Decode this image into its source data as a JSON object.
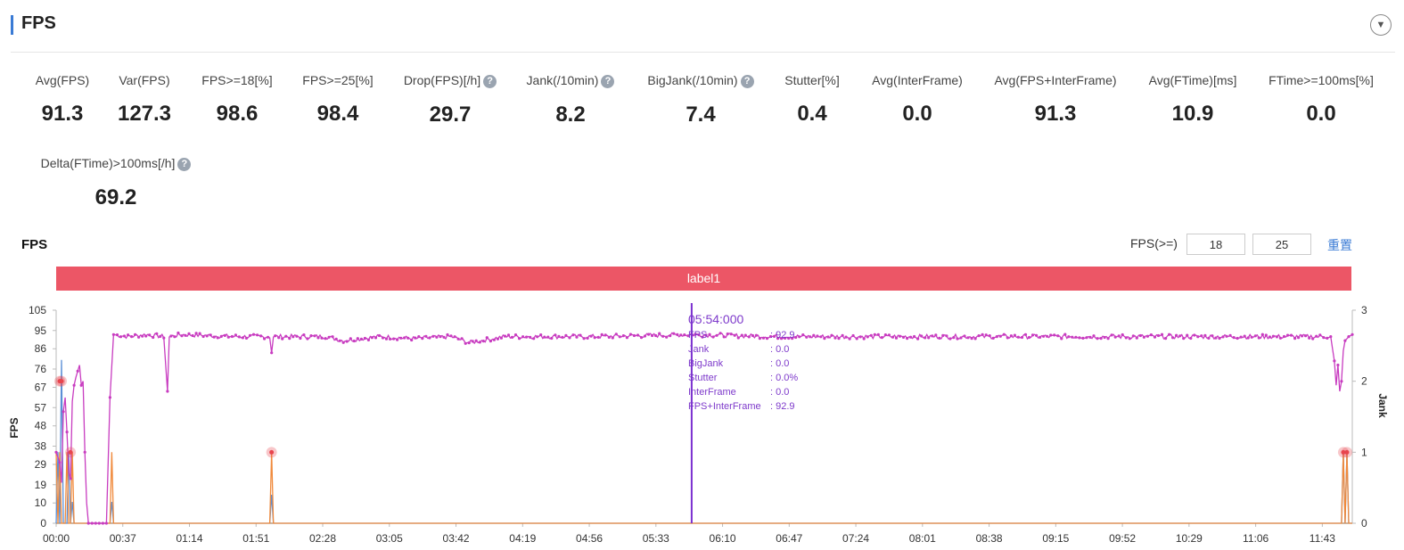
{
  "header": {
    "title": "FPS",
    "collapse_icon": "▼"
  },
  "stats": [
    {
      "label": "Avg(FPS)",
      "value": "91.3",
      "help": false
    },
    {
      "label": "Var(FPS)",
      "value": "127.3",
      "help": false
    },
    {
      "label": "FPS>=18[%]",
      "value": "98.6",
      "help": false
    },
    {
      "label": "FPS>=25[%]",
      "value": "98.4",
      "help": false
    },
    {
      "label": "Drop(FPS)[/h]",
      "value": "29.7",
      "help": true
    },
    {
      "label": "Jank(/10min)",
      "value": "8.2",
      "help": true
    },
    {
      "label": "BigJank(/10min)",
      "value": "7.4",
      "help": true
    },
    {
      "label": "Stutter[%]",
      "value": "0.4",
      "help": false
    },
    {
      "label": "Avg(InterFrame)",
      "value": "0.0",
      "help": false
    },
    {
      "label": "Avg(FPS+InterFrame)",
      "value": "91.3",
      "help": false
    },
    {
      "label": "Avg(FTime)[ms]",
      "value": "10.9",
      "help": false
    },
    {
      "label": "FTime>=100ms[%]",
      "value": "0.0",
      "help": false
    },
    {
      "label": "Delta(FTime)>100ms[/h]",
      "value": "69.2",
      "help": true
    }
  ],
  "chart_section": {
    "title": "FPS",
    "threshold_label": "FPS(>=)",
    "threshold_1": "18",
    "threshold_2": "25",
    "reset_label": "重置",
    "label_bar": "label1"
  },
  "tooltip": {
    "time": "05:54:000",
    "rows": [
      {
        "key": "FPS",
        "value": ": 92.9"
      },
      {
        "key": "Jank",
        "value": ": 0.0"
      },
      {
        "key": "BigJank",
        "value": ": 0.0"
      },
      {
        "key": "Stutter",
        "value": ": 0.0%"
      },
      {
        "key": "InterFrame",
        "value": ": 0.0"
      },
      {
        "key": "FPS+InterFrame",
        "value": ": 92.9"
      }
    ]
  },
  "chart_data": {
    "type": "line",
    "ylabel": "FPS",
    "y2label": "Jank",
    "y_ticks": [
      0,
      10,
      19,
      29,
      38,
      48,
      57,
      67,
      76,
      86,
      95,
      105
    ],
    "y2_ticks": [
      0,
      1,
      2,
      3
    ],
    "x_ticks": [
      "00:00",
      "00:37",
      "01:14",
      "01:51",
      "02:28",
      "03:05",
      "03:42",
      "04:19",
      "04:56",
      "05:33",
      "06:10",
      "06:47",
      "07:24",
      "08:01",
      "08:38",
      "09:15",
      "09:52",
      "10:29",
      "11:06",
      "11:43"
    ],
    "x_range_s": [
      0,
      722
    ],
    "ylim": [
      0,
      105
    ],
    "y2lim": [
      0,
      3
    ],
    "cursor_time_s": 354,
    "colors": {
      "fps": "#c83cc0",
      "jank": "#f08a3c",
      "bigjank": "#5b8fd6",
      "cursor": "#7a2fd0",
      "marker": "#e8454e"
    },
    "series": [
      {
        "name": "FPS",
        "points": [
          [
            0,
            35
          ],
          [
            2,
            30
          ],
          [
            3,
            20
          ],
          [
            4,
            55
          ],
          [
            5,
            62
          ],
          [
            6,
            45
          ],
          [
            7,
            25
          ],
          [
            8,
            22
          ],
          [
            9,
            60
          ],
          [
            10,
            68
          ],
          [
            11,
            72
          ],
          [
            12,
            75
          ],
          [
            13,
            78
          ],
          [
            14,
            68
          ],
          [
            15,
            70
          ],
          [
            16,
            35
          ],
          [
            17,
            10
          ],
          [
            18,
            0
          ],
          [
            20,
            0
          ],
          [
            22,
            0
          ],
          [
            25,
            0
          ],
          [
            28,
            0
          ],
          [
            30,
            62
          ],
          [
            32,
            93
          ],
          [
            40,
            92
          ],
          [
            50,
            93
          ],
          [
            60,
            92
          ],
          [
            62,
            65
          ],
          [
            63,
            92
          ],
          [
            70,
            93
          ],
          [
            100,
            92
          ],
          [
            119,
            92
          ],
          [
            120,
            84
          ],
          [
            121,
            92
          ],
          [
            150,
            92
          ],
          [
            160,
            90
          ],
          [
            180,
            92
          ],
          [
            200,
            91
          ],
          [
            220,
            92
          ],
          [
            230,
            89
          ],
          [
            250,
            92
          ],
          [
            300,
            92
          ],
          [
            354,
            93
          ],
          [
            400,
            92
          ],
          [
            500,
            92
          ],
          [
            600,
            92
          ],
          [
            700,
            92
          ],
          [
            710,
            92
          ],
          [
            712,
            80
          ],
          [
            713,
            68
          ],
          [
            714,
            78
          ],
          [
            715,
            65
          ],
          [
            716,
            70
          ],
          [
            717,
            85
          ],
          [
            718,
            90
          ],
          [
            720,
            92
          ],
          [
            722,
            93
          ]
        ]
      },
      {
        "name": "Jank",
        "points": [
          [
            0,
            1
          ],
          [
            1,
            0
          ],
          [
            2,
            1
          ],
          [
            3,
            0
          ],
          [
            5,
            0
          ],
          [
            6,
            1
          ],
          [
            7,
            0
          ],
          [
            8,
            0
          ],
          [
            9,
            1
          ],
          [
            10,
            0
          ],
          [
            30,
            0
          ],
          [
            31,
            1
          ],
          [
            32,
            0
          ],
          [
            119,
            0
          ],
          [
            120,
            1
          ],
          [
            121,
            0
          ],
          [
            716,
            0
          ],
          [
            717,
            1
          ],
          [
            718,
            0
          ],
          [
            719,
            1
          ],
          [
            720,
            0
          ],
          [
            722,
            0
          ]
        ]
      },
      {
        "name": "BigJank",
        "points": [
          [
            0,
            0
          ],
          [
            1,
            1
          ],
          [
            2,
            0
          ],
          [
            3,
            2.3
          ],
          [
            4,
            0
          ],
          [
            6,
            0
          ],
          [
            7,
            1
          ],
          [
            8,
            0
          ],
          [
            9,
            0.3
          ],
          [
            10,
            0
          ],
          [
            30,
            0
          ],
          [
            31,
            0.3
          ],
          [
            32,
            0
          ],
          [
            119,
            0
          ],
          [
            120,
            0.4
          ],
          [
            121,
            0
          ],
          [
            716,
            0
          ],
          [
            717,
            1
          ],
          [
            718,
            0
          ],
          [
            719,
            1
          ],
          [
            720,
            0
          ],
          [
            722,
            0
          ]
        ]
      }
    ],
    "markers": [
      [
        2,
        2
      ],
      [
        3,
        2
      ],
      [
        8,
        1
      ],
      [
        120,
        1
      ],
      [
        717,
        1
      ],
      [
        719,
        1
      ]
    ]
  }
}
